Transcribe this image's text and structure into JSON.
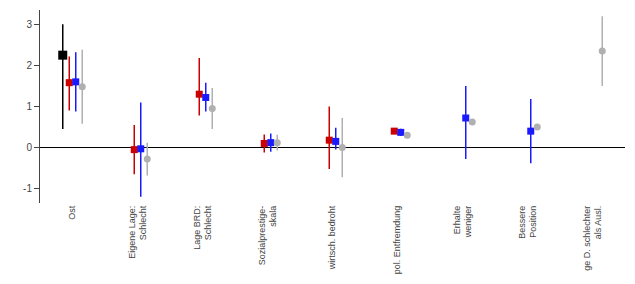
{
  "chart_data": {
    "type": "scatter",
    "categories": [
      "Ost",
      "Eigene Lage:\nSchlecht",
      "Lage BRD:\nSchlecht",
      "Sozialprestige-\nskala",
      "wirtsch. bedroht",
      "pol. Entfremdung",
      "Erhalte\nweniger",
      "Bessere\nPosition",
      "ge D. schlechter\nals Ausl."
    ],
    "series": [
      {
        "color": "black",
        "marker": "square",
        "values": [
          2.25,
          null,
          null,
          null,
          null,
          null,
          null,
          null,
          null
        ],
        "lo": [
          0.45,
          null,
          null,
          null,
          null,
          null,
          null,
          null,
          null
        ],
        "hi": [
          3.0,
          null,
          null,
          null,
          null,
          null,
          null,
          null,
          null
        ]
      },
      {
        "color": "#cc0000",
        "marker": "square",
        "values": [
          1.58,
          -0.05,
          1.3,
          0.1,
          0.18,
          0.4,
          null,
          null,
          null
        ],
        "lo": [
          0.9,
          -0.65,
          0.78,
          -0.12,
          -0.52,
          0.34,
          null,
          null,
          null
        ],
        "hi": [
          2.22,
          0.55,
          2.18,
          0.32,
          1.0,
          0.46,
          null,
          null,
          null
        ]
      },
      {
        "color": "#1a1aff",
        "marker": "square",
        "values": [
          1.6,
          -0.03,
          1.22,
          0.12,
          0.15,
          0.37,
          0.72,
          0.4,
          null
        ],
        "lo": [
          0.88,
          -1.2,
          0.88,
          -0.1,
          -0.05,
          0.28,
          -0.28,
          -0.38,
          null
        ],
        "hi": [
          2.32,
          1.1,
          1.58,
          0.34,
          0.48,
          0.46,
          1.5,
          1.18,
          null
        ]
      },
      {
        "color": "#b0b0b0",
        "marker": "circle",
        "values": [
          1.48,
          -0.28,
          0.95,
          0.12,
          0.0,
          0.3,
          0.62,
          0.5,
          2.35
        ],
        "lo": [
          0.58,
          -0.68,
          0.45,
          -0.07,
          -0.72,
          0.25,
          null,
          null,
          1.5
        ],
        "hi": [
          2.38,
          0.12,
          1.45,
          0.31,
          0.72,
          0.35,
          null,
          null,
          3.2
        ]
      }
    ],
    "ylim": [
      -1.35,
      3.35
    ],
    "yticks": [
      -1,
      0,
      1,
      2,
      3
    ],
    "grid": false
  }
}
